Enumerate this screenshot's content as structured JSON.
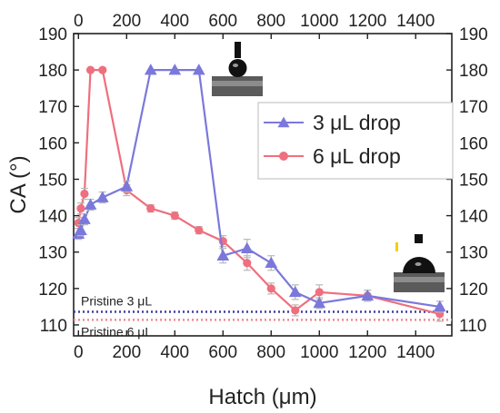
{
  "chart_data": {
    "type": "line",
    "title": "",
    "xlabel": "Hatch (μm)",
    "ylabel": "CA (°)",
    "xlim": [
      -20,
      1550
    ],
    "ylim": [
      107,
      190
    ],
    "x_ticks": [
      "0",
      "200",
      "400",
      "600",
      "800",
      "1000",
      "1200",
      "1400"
    ],
    "x_tick_values": [
      0,
      200,
      400,
      600,
      800,
      1000,
      1200,
      1400
    ],
    "y_ticks": [
      "110",
      "120",
      "130",
      "140",
      "150",
      "160",
      "170",
      "180",
      "190"
    ],
    "y_tick_values": [
      110,
      120,
      130,
      140,
      150,
      160,
      170,
      180,
      190
    ],
    "top_x_ticks": [
      "0",
      "200",
      "400",
      "600",
      "800",
      "1000",
      "1200",
      "1400"
    ],
    "right_y_ticks": [
      "110",
      "120",
      "130",
      "140",
      "150",
      "160",
      "170",
      "180",
      "190"
    ],
    "legend_position": "upper-right",
    "series": [
      {
        "name": "3 μL drop",
        "color": "#7b78dc",
        "marker": "triangle",
        "x": [
          0,
          10,
          25,
          50,
          100,
          200,
          300,
          400,
          500,
          600,
          700,
          800,
          900,
          1000,
          1200,
          1500
        ],
        "y": [
          135,
          136,
          139,
          143,
          145,
          148,
          180,
          180,
          180,
          129,
          131,
          127,
          119,
          116,
          118,
          115
        ],
        "yerr": [
          1.5,
          1.5,
          1.5,
          1.5,
          1.5,
          1.5,
          0,
          0,
          0,
          2,
          2.5,
          2,
          2,
          1.5,
          1.5,
          1.5
        ]
      },
      {
        "name": "6 μL drop",
        "color": "#ef6f7e",
        "marker": "circle",
        "x": [
          0,
          10,
          25,
          50,
          100,
          200,
          300,
          400,
          500,
          600,
          700,
          800,
          900,
          1000,
          1200,
          1500
        ],
        "y": [
          138,
          142,
          146,
          180,
          180,
          147,
          142,
          140,
          136,
          133,
          127,
          120,
          114,
          119,
          118,
          113
        ],
        "yerr": [
          1.5,
          1.5,
          1.5,
          0,
          0,
          1.5,
          1,
          1,
          1,
          1.5,
          2,
          1.5,
          1.5,
          2,
          1.5,
          2
        ]
      }
    ],
    "reference_lines": [
      {
        "label": "Pristine 3 μL",
        "y": 113.6,
        "color": "#3f3f9e",
        "style": "dotted"
      },
      {
        "label": "Pristine 6 μL",
        "y": 111.4,
        "color": "#ef8b96",
        "style": "dotted"
      }
    ]
  },
  "icons": {
    "drop_top": "droplet-on-surface-image",
    "drop_right": "droplet-on-surface-image"
  }
}
